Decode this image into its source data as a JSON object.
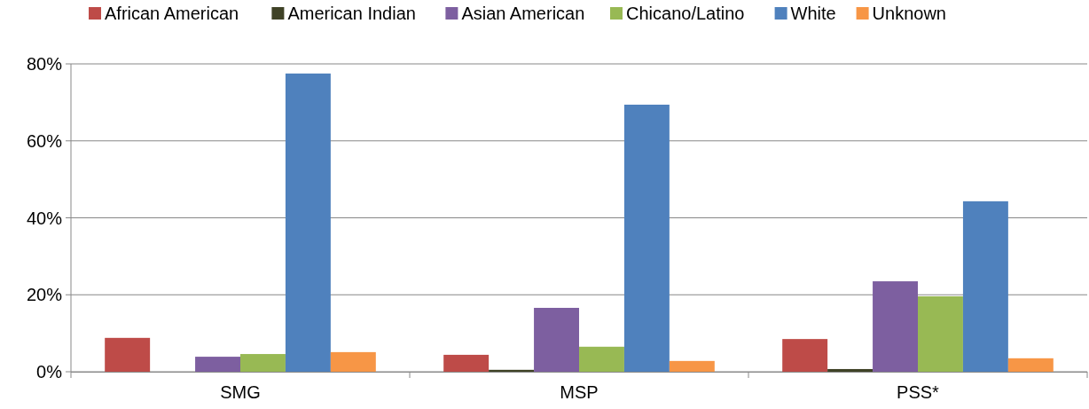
{
  "chart_data": {
    "type": "bar",
    "categories": [
      "SMG",
      "MSP",
      "PSS*"
    ],
    "series": [
      {
        "name": "African American",
        "color": "#be4b48",
        "values": [
          8.8,
          4.4,
          8.5
        ]
      },
      {
        "name": "American Indian",
        "color": "#3f4226",
        "values": [
          0,
          0.5,
          0.7
        ]
      },
      {
        "name": "Asian American",
        "color": "#7d5fa0",
        "values": [
          3.9,
          16.6,
          23.5
        ]
      },
      {
        "name": "Chicano/Latino",
        "color": "#98b954",
        "values": [
          4.6,
          6.5,
          19.6
        ]
      },
      {
        "name": "White",
        "color": "#4f81bd",
        "values": [
          77.5,
          69.4,
          44.3
        ]
      },
      {
        "name": "Unknown",
        "color": "#f79646",
        "values": [
          5.1,
          2.8,
          3.5
        ]
      }
    ],
    "ylim": [
      0,
      80
    ],
    "yticks": [
      {
        "value": 0,
        "label": "0%"
      },
      {
        "value": 20,
        "label": "20%"
      },
      {
        "value": 40,
        "label": "40%"
      },
      {
        "value": 60,
        "label": "60%"
      },
      {
        "value": 80,
        "label": "80%"
      }
    ],
    "grid": "y",
    "legend": "top"
  }
}
